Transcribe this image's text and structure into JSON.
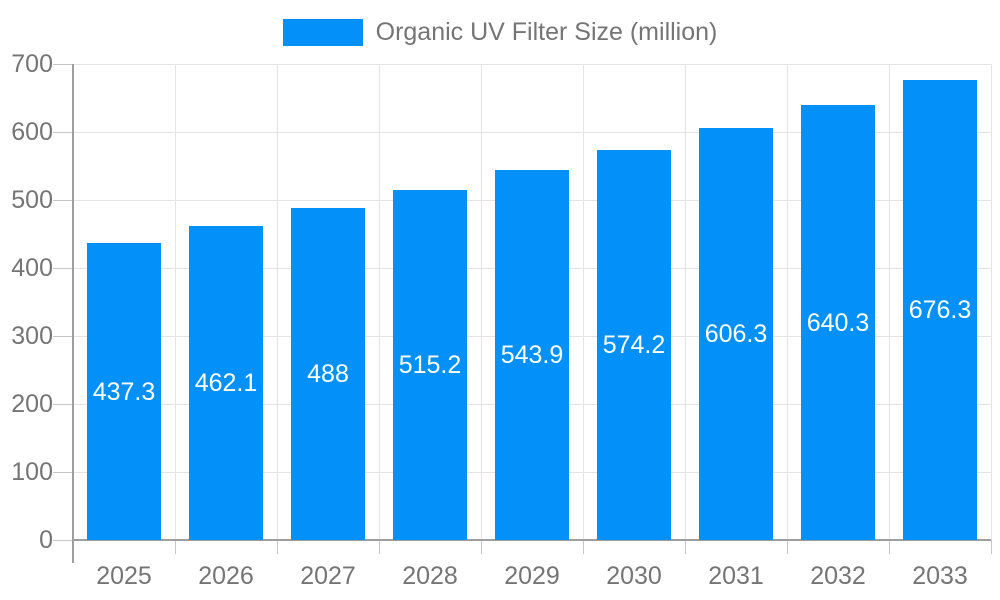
{
  "legend": {
    "label": "Organic UV Filter Size (million)",
    "swatch_color": "#0390f9"
  },
  "chart_data": {
    "type": "bar",
    "title": "Organic UV Filter Size (million)",
    "categories": [
      "2025",
      "2026",
      "2027",
      "2028",
      "2029",
      "2030",
      "2031",
      "2032",
      "2033"
    ],
    "values": [
      437.3,
      462.1,
      488,
      515.2,
      543.9,
      574.2,
      606.3,
      640.3,
      676.3
    ],
    "series": [
      {
        "name": "Organic UV Filter Size (million)",
        "values": [
          437.3,
          462.1,
          488,
          515.2,
          543.9,
          574.2,
          606.3,
          640.3,
          676.3
        ]
      }
    ],
    "value_labels": [
      "437.3",
      "462.1",
      "488",
      "515.2",
      "543.9",
      "574.2",
      "606.3",
      "640.3",
      "676.3"
    ],
    "xlabel": "",
    "ylabel": "",
    "ylim": [
      0,
      700
    ],
    "yticks": [
      0,
      100,
      200,
      300,
      400,
      500,
      600,
      700
    ],
    "grid": true,
    "legend_position": "top-center",
    "bar_color": "#0390f9",
    "value_label_color": "#ffffff",
    "axis_text_color": "#757575"
  }
}
